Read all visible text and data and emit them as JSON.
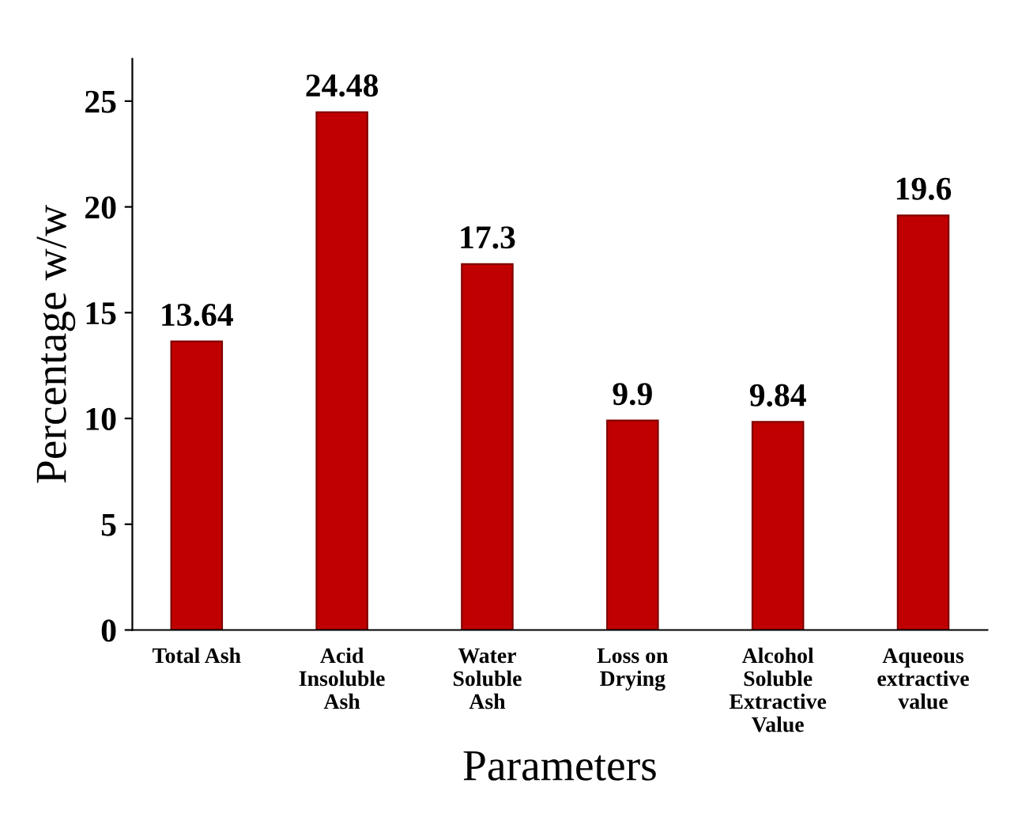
{
  "chart_data": {
    "type": "bar",
    "xlabel": "Parameters",
    "ylabel": "Percentage w/w",
    "categories": [
      "Total Ash",
      "Acid\nInsoluble\nAsh",
      "Water\nSoluble\nAsh",
      "Loss on\nDrying",
      "Alcohol\nSoluble\nExtractive\nValue",
      "Aqueous\nextractive\nvalue"
    ],
    "values": [
      13.64,
      24.48,
      17.3,
      9.9,
      9.84,
      19.6
    ],
    "color": "#c00000",
    "ylim": [
      0,
      27
    ],
    "yticks": [
      0,
      5,
      10,
      15,
      20,
      25
    ],
    "data_labels": true,
    "grid": false,
    "legend": false
  }
}
